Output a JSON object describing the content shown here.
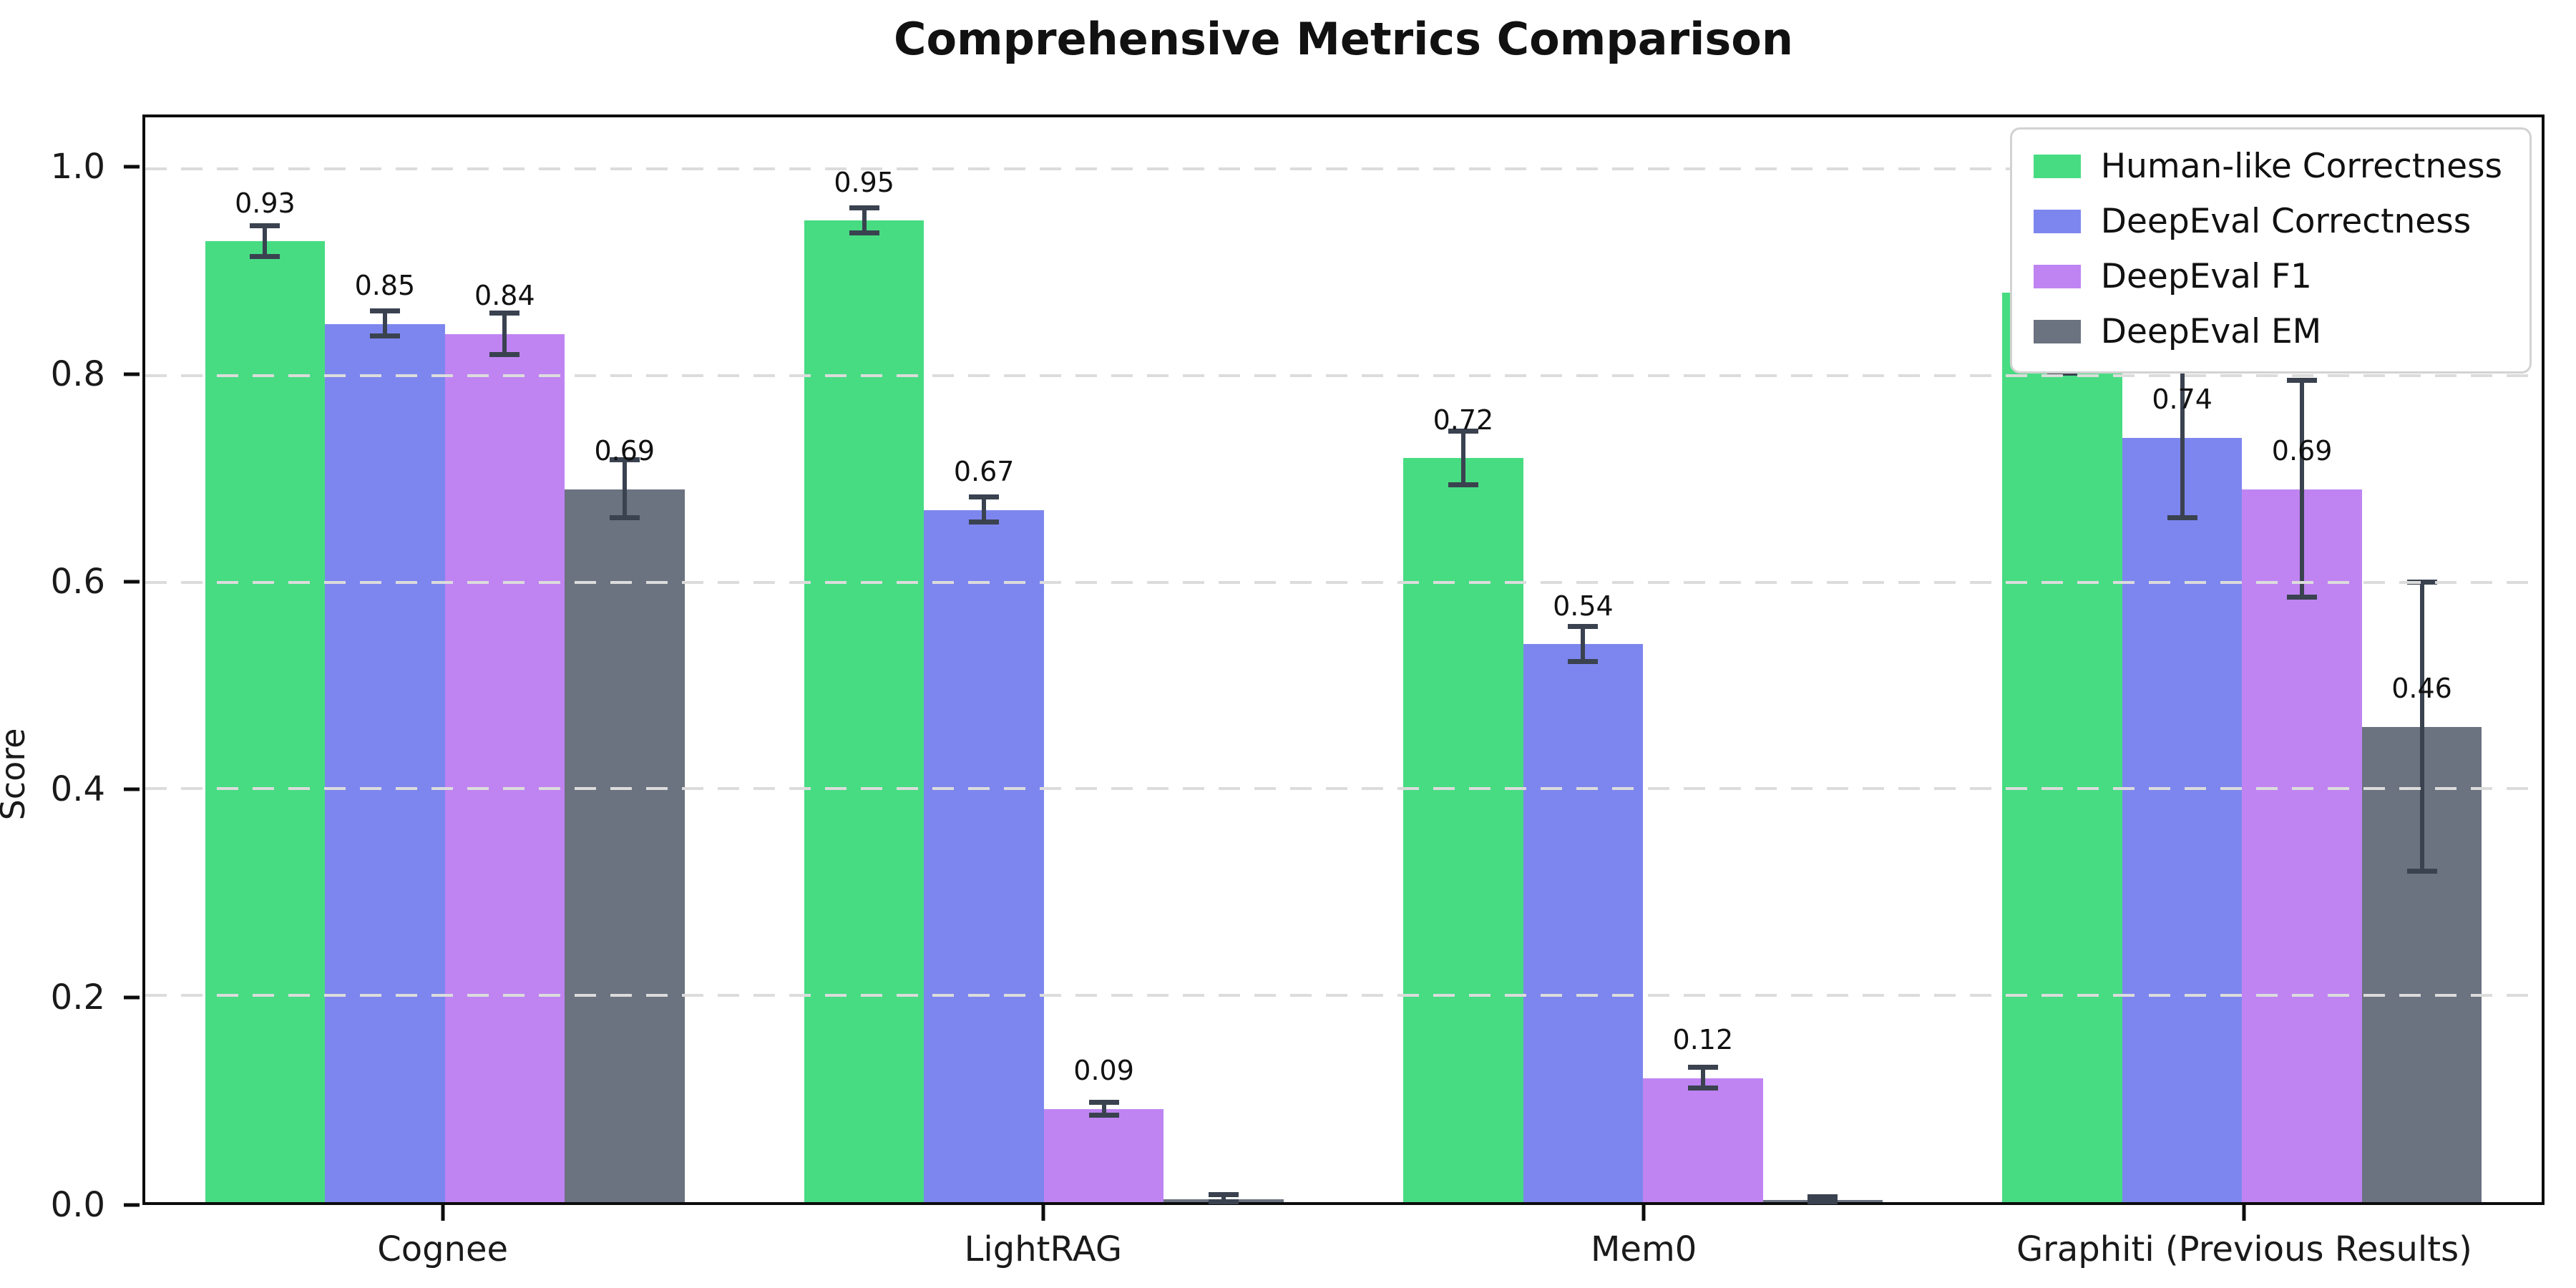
{
  "title": "Comprehensive Metrics Comparison",
  "chart_data": {
    "type": "bar",
    "title": "Comprehensive Metrics Comparison",
    "xlabel": "",
    "ylabel": "Score",
    "ylim": [
      0,
      1.05
    ],
    "yticks": [
      0.0,
      0.2,
      0.4,
      0.6,
      0.8,
      1.0
    ],
    "ytick_labels": [
      "0.0",
      "0.2",
      "0.4",
      "0.6",
      "0.8",
      "1.0"
    ],
    "grid": "horizontal-dashed",
    "legend_position": "upper-right",
    "categories": [
      "Cognee",
      "LightRAG",
      "Mem0",
      "Graphiti (Previous Results)"
    ],
    "series": [
      {
        "name": "Human-like Correctness",
        "color": "#47dc82",
        "values": [
          0.93,
          0.95,
          0.72,
          0.88
        ],
        "errors": [
          0.015,
          0.012,
          0.026,
          0.078
        ],
        "labels": [
          "0.93",
          "0.95",
          "0.72",
          "0.88"
        ]
      },
      {
        "name": "DeepEval Correctness",
        "color": "#7d86ee",
        "values": [
          0.85,
          0.67,
          0.54,
          0.74
        ],
        "errors": [
          0.012,
          0.012,
          0.017,
          0.078
        ],
        "labels": [
          "0.85",
          "0.67",
          "0.54",
          "0.74"
        ]
      },
      {
        "name": "DeepEval F1",
        "color": "#bf84f2",
        "values": [
          0.84,
          0.09,
          0.12,
          0.69
        ],
        "errors": [
          0.02,
          0.006,
          0.01,
          0.105
        ],
        "labels": [
          "0.84",
          "0.09",
          "0.12",
          "0.69"
        ]
      },
      {
        "name": "DeepEval EM",
        "color": "#6b7280",
        "values": [
          0.69,
          0.003,
          0.002,
          0.46
        ],
        "errors": [
          0.028,
          0.004,
          0.003,
          0.14
        ],
        "labels": [
          "0.69",
          "",
          "",
          "0.46"
        ]
      }
    ],
    "error_bar_color": "#3a4250",
    "bar_group_fill_ratio": 0.8
  }
}
